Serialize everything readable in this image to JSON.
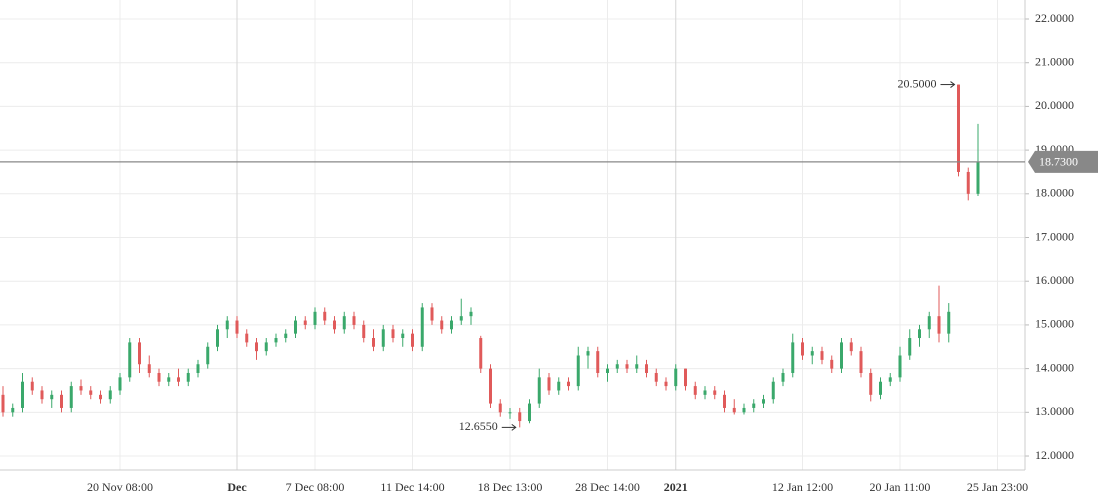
{
  "chart_data": {
    "type": "candlestick",
    "categories": [
      null,
      null,
      null,
      null,
      null,
      null,
      null,
      null,
      null,
      null,
      null,
      null,
      "20 Nov 08:00",
      null,
      null,
      null,
      null,
      null,
      null,
      null,
      null,
      null,
      null,
      null,
      "Dec",
      null,
      null,
      null,
      null,
      null,
      null,
      null,
      "7 Dec 08:00",
      null,
      null,
      null,
      null,
      null,
      null,
      null,
      null,
      null,
      "11 Dec 14:00",
      null,
      null,
      null,
      null,
      null,
      null,
      null,
      null,
      null,
      "18 Dec 13:00",
      null,
      null,
      null,
      null,
      null,
      null,
      null,
      null,
      null,
      "28 Dec 14:00",
      null,
      null,
      null,
      null,
      null,
      null,
      "2021",
      null,
      null,
      null,
      null,
      null,
      null,
      null,
      null,
      null,
      null,
      null,
      null,
      "12 Jan 12:00",
      null,
      null,
      null,
      null,
      null,
      null,
      null,
      null,
      null,
      "20 Jan 11:00",
      null,
      null,
      null,
      null,
      null,
      null,
      null,
      null,
      null,
      "25 Jan 23:00"
    ],
    "open": [
      13.4,
      13.0,
      13.1,
      13.7,
      13.5,
      13.3,
      13.4,
      13.1,
      13.6,
      13.5,
      13.4,
      13.3,
      13.5,
      13.8,
      14.6,
      14.1,
      13.9,
      13.7,
      13.8,
      13.7,
      13.9,
      14.1,
      14.5,
      14.9,
      15.1,
      14.8,
      14.6,
      14.4,
      14.6,
      14.7,
      14.8,
      15.1,
      15.0,
      15.3,
      15.1,
      14.9,
      15.2,
      15.0,
      14.7,
      14.5,
      14.9,
      14.7,
      14.8,
      14.5,
      15.4,
      15.1,
      14.9,
      15.1,
      15.2,
      14.7,
      14.0,
      13.2,
      13.0,
      13.0,
      12.8,
      13.2,
      13.8,
      13.5,
      13.7,
      13.6,
      14.3,
      14.4,
      13.9,
      14.0,
      14.1,
      14.0,
      14.1,
      13.9,
      13.7,
      13.6,
      14.0,
      13.6,
      13.4,
      13.5,
      13.4,
      13.1,
      13.0,
      13.1,
      13.2,
      13.3,
      13.7,
      13.9,
      14.6,
      14.3,
      14.4,
      14.2,
      14.0,
      14.6,
      14.4,
      13.9,
      13.4,
      13.7,
      13.8,
      14.3,
      14.7,
      14.9,
      15.2,
      14.8,
      20.5,
      18.5,
      18.0,
      null,
      null
    ],
    "high": [
      13.6,
      13.2,
      13.9,
      13.8,
      13.6,
      13.5,
      13.5,
      13.7,
      13.75,
      13.6,
      13.5,
      13.6,
      13.9,
      14.7,
      14.7,
      14.3,
      14.0,
      13.9,
      14.0,
      14.0,
      14.2,
      14.6,
      15.0,
      15.2,
      15.2,
      14.9,
      14.7,
      14.7,
      14.8,
      14.9,
      15.2,
      15.2,
      15.4,
      15.4,
      15.2,
      15.3,
      15.3,
      15.1,
      14.9,
      15.0,
      15.0,
      14.9,
      14.9,
      15.5,
      15.5,
      15.2,
      15.2,
      15.6,
      15.4,
      14.75,
      14.1,
      13.3,
      13.1,
      13.1,
      13.3,
      14.0,
      13.9,
      13.8,
      13.8,
      14.5,
      14.5,
      14.5,
      14.1,
      14.2,
      14.2,
      14.3,
      14.2,
      14.0,
      13.8,
      14.1,
      14.0,
      13.7,
      13.6,
      13.6,
      13.5,
      13.3,
      13.2,
      13.3,
      13.4,
      13.8,
      14.0,
      14.8,
      14.7,
      14.5,
      14.5,
      14.3,
      14.7,
      14.7,
      14.5,
      14.0,
      13.8,
      13.9,
      14.5,
      14.9,
      15.0,
      15.3,
      15.9,
      15.5,
      20.5,
      18.6,
      19.6,
      null,
      null
    ],
    "low": [
      12.9,
      12.9,
      13.0,
      13.4,
      13.2,
      13.1,
      13.0,
      13.0,
      13.4,
      13.3,
      13.2,
      13.2,
      13.4,
      13.7,
      13.9,
      13.8,
      13.6,
      13.6,
      13.6,
      13.6,
      13.8,
      14.0,
      14.4,
      14.7,
      14.7,
      14.5,
      14.2,
      14.3,
      14.5,
      14.6,
      14.7,
      14.9,
      14.9,
      15.0,
      14.8,
      14.8,
      14.9,
      14.6,
      14.4,
      14.4,
      14.6,
      14.5,
      14.4,
      14.4,
      15.0,
      14.8,
      14.8,
      15.0,
      15.0,
      13.9,
      13.1,
      12.9,
      12.85,
      12.655,
      12.75,
      13.1,
      13.4,
      13.4,
      13.5,
      13.5,
      14.0,
      13.8,
      13.7,
      13.9,
      13.9,
      13.9,
      13.8,
      13.6,
      13.5,
      13.5,
      13.5,
      13.3,
      13.3,
      13.3,
      13.0,
      12.95,
      12.95,
      13.0,
      13.1,
      13.2,
      13.6,
      13.8,
      14.2,
      14.1,
      14.1,
      13.9,
      13.9,
      14.3,
      13.8,
      13.25,
      13.3,
      13.6,
      13.7,
      14.2,
      14.5,
      14.7,
      14.6,
      14.6,
      18.4,
      17.85,
      17.95,
      null,
      null
    ],
    "close": [
      13.0,
      13.1,
      13.7,
      13.5,
      13.3,
      13.4,
      13.1,
      13.6,
      13.5,
      13.4,
      13.3,
      13.5,
      13.8,
      14.6,
      14.1,
      13.9,
      13.7,
      13.8,
      13.7,
      13.9,
      14.1,
      14.5,
      14.9,
      15.1,
      14.8,
      14.6,
      14.4,
      14.6,
      14.7,
      14.8,
      15.1,
      15.0,
      15.3,
      15.1,
      14.9,
      15.2,
      15.0,
      14.7,
      14.5,
      14.9,
      14.7,
      14.8,
      14.5,
      15.4,
      15.1,
      14.9,
      15.1,
      15.2,
      15.3,
      14.0,
      13.2,
      13.0,
      13.0,
      12.8,
      13.2,
      13.8,
      13.5,
      13.7,
      13.6,
      14.3,
      14.4,
      13.9,
      14.0,
      14.1,
      14.0,
      14.1,
      13.9,
      13.7,
      13.6,
      14.0,
      13.6,
      13.4,
      13.5,
      13.4,
      13.1,
      13.0,
      13.1,
      13.2,
      13.3,
      13.7,
      13.9,
      14.6,
      14.3,
      14.4,
      14.2,
      14.0,
      14.6,
      14.4,
      13.9,
      13.4,
      13.7,
      13.8,
      14.3,
      14.7,
      14.9,
      15.2,
      14.8,
      15.3,
      18.5,
      18.0,
      18.73,
      null,
      null
    ],
    "up_color": "#3aa86b",
    "down_color": "#e05a5a",
    "ylim": [
      11.68,
      22.435
    ],
    "yticks": [
      {
        "value": 12,
        "label": "12.0000"
      },
      {
        "value": 13,
        "label": "13.0000"
      },
      {
        "value": 14,
        "label": "14.0000"
      },
      {
        "value": 15,
        "label": "15.0000"
      },
      {
        "value": 16,
        "label": "16.0000"
      },
      {
        "value": 17,
        "label": "17.0000"
      },
      {
        "value": 18,
        "label": "18.0000"
      },
      {
        "value": 19,
        "label": "19.0000"
      },
      {
        "value": 20,
        "label": "20.0000"
      },
      {
        "value": 21,
        "label": "21.0000"
      },
      {
        "value": 22,
        "label": "22.0000"
      }
    ],
    "last_price": {
      "value": 18.73,
      "label": "18.7300"
    },
    "max_marker": {
      "value": 20.5,
      "label": "20.5000"
    },
    "min_marker": {
      "value": 12.655,
      "label": "12.6550"
    },
    "grid": true
  }
}
